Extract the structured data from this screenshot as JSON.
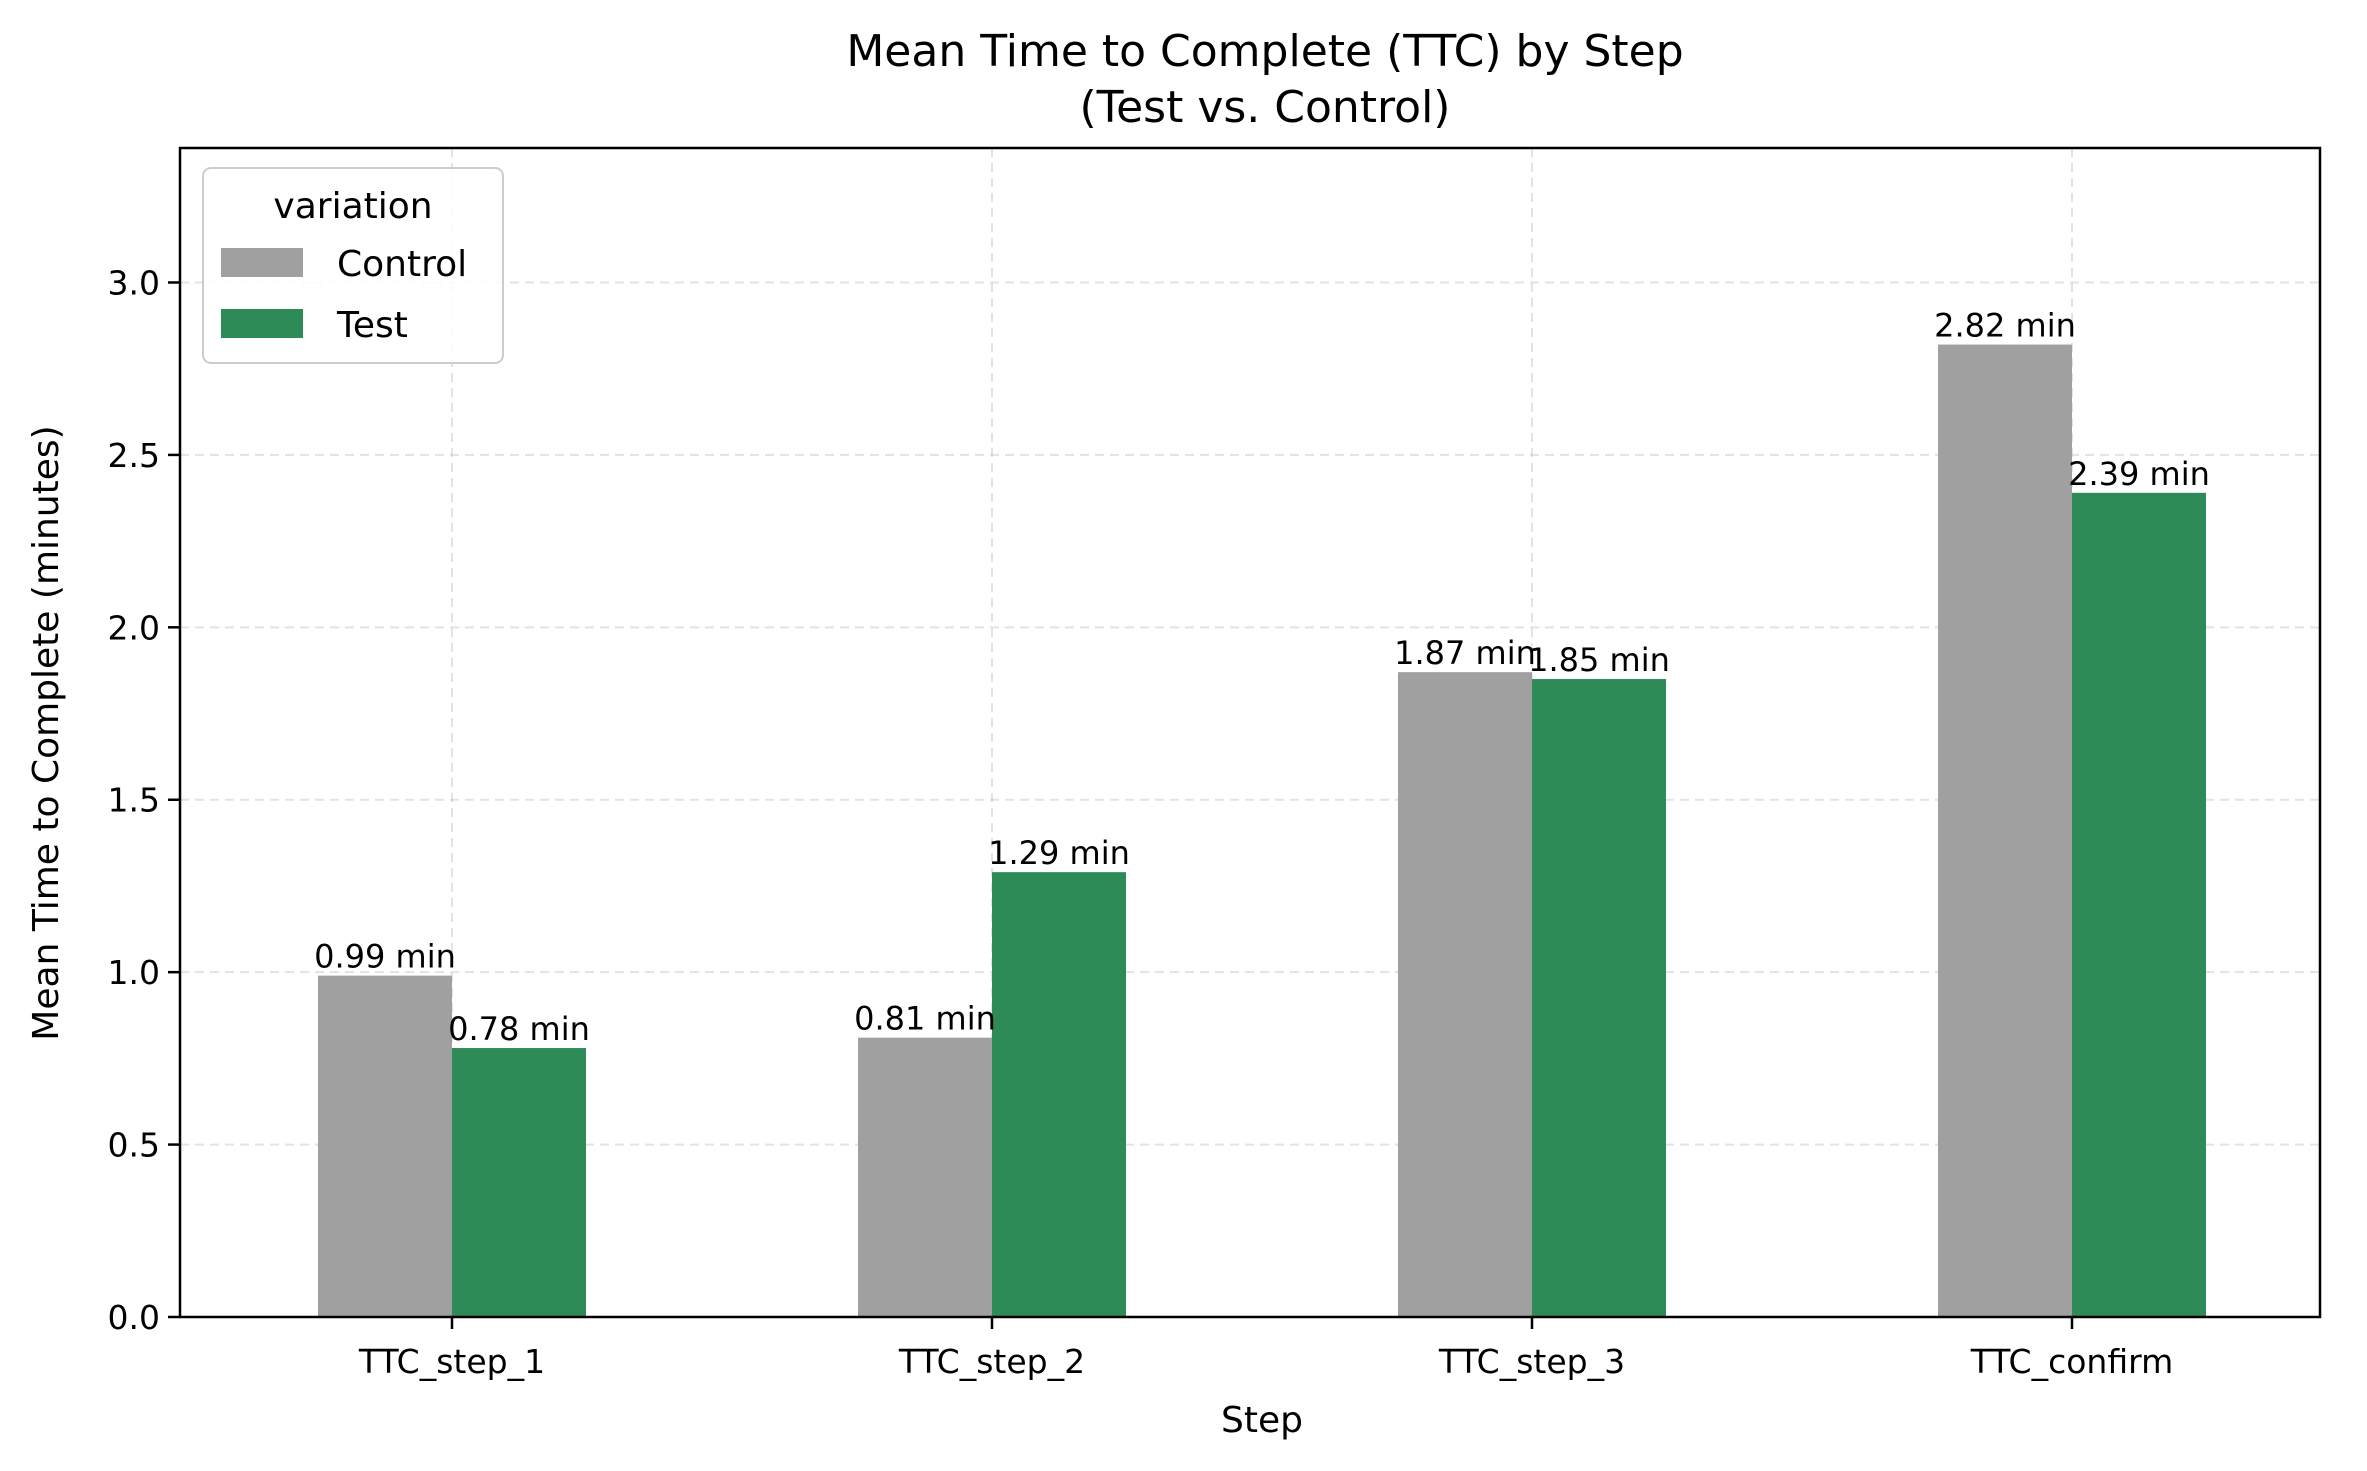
{
  "chart_data": {
    "type": "bar",
    "title": "Mean Time to Complete (TTC) by Step",
    "subtitle": "(Test vs. Control)",
    "xlabel": "Step",
    "ylabel": "Mean Time to Complete (minutes)",
    "categories": [
      "TTC_step_1",
      "TTC_step_2",
      "TTC_step_3",
      "TTC_confirm"
    ],
    "series": [
      {
        "name": "Control",
        "color": "#a0a0a0",
        "values": [
          0.99,
          0.81,
          1.87,
          2.82
        ],
        "labels": [
          "0.99 min",
          "0.81 min",
          "1.87 min",
          "2.82 min"
        ]
      },
      {
        "name": "Test",
        "color": "#2e8b57",
        "values": [
          0.78,
          1.29,
          1.85,
          2.39
        ],
        "labels": [
          "0.78 min",
          "1.29 min",
          "1.85 min",
          "2.39 min"
        ]
      }
    ],
    "ylim": [
      0,
      3.39
    ],
    "yticks": [
      0.0,
      0.5,
      1.0,
      1.5,
      2.0,
      2.5,
      3.0
    ],
    "ytick_labels": [
      "0.0",
      "0.5",
      "1.0",
      "1.5",
      "2.0",
      "2.5",
      "3.0"
    ],
    "grid": true,
    "legend": {
      "title": "variation",
      "placement": "top-left"
    }
  }
}
